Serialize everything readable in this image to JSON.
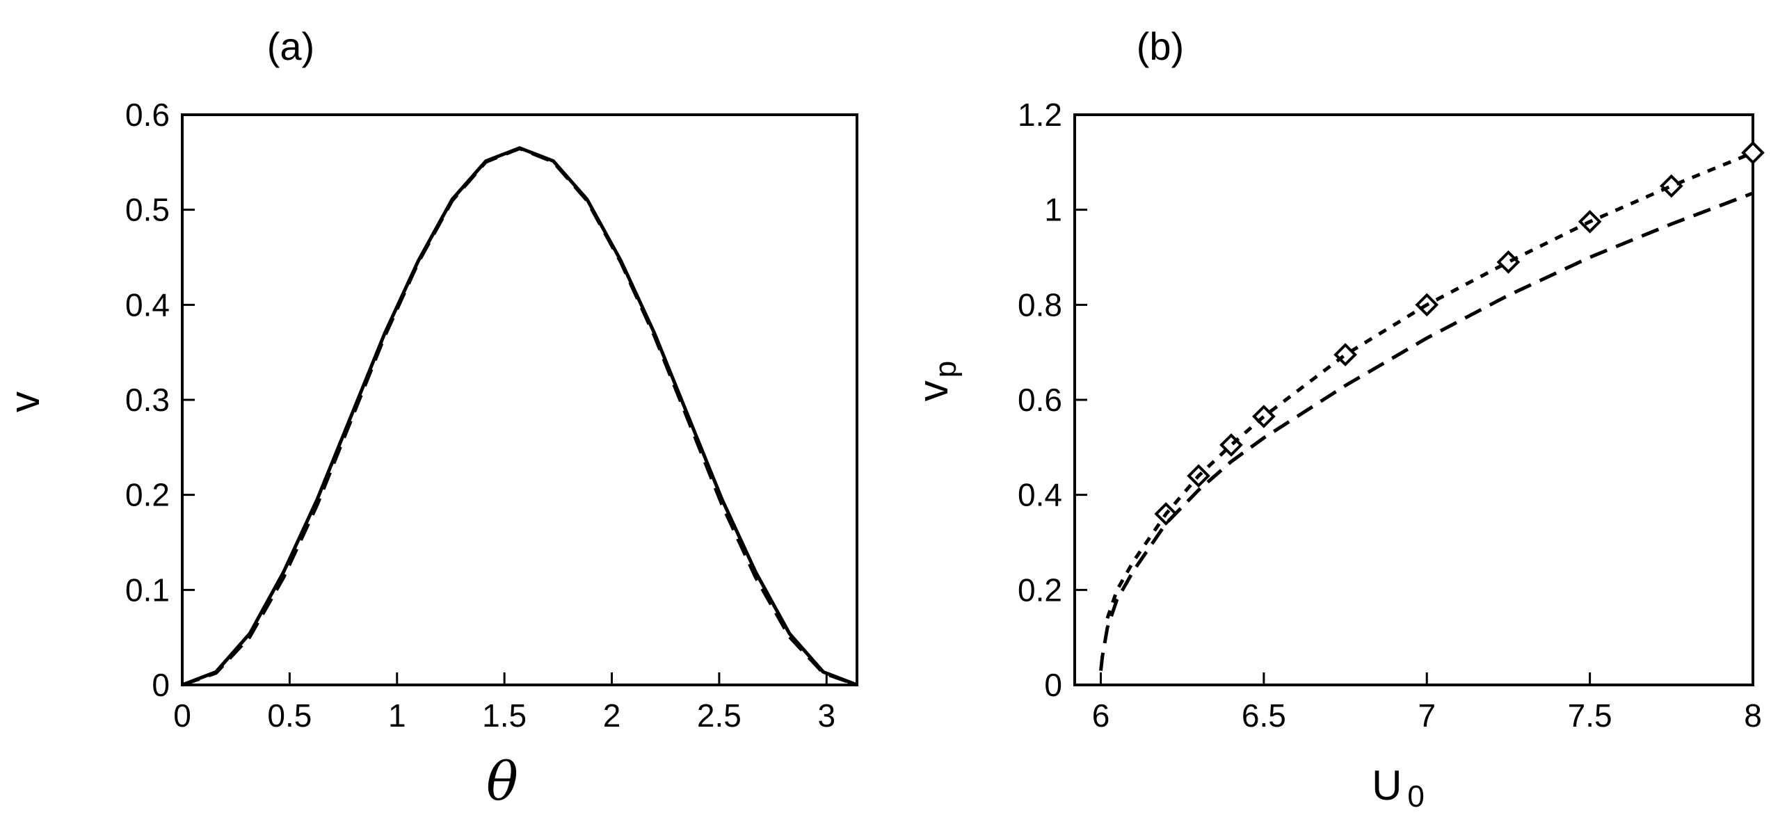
{
  "chart_data": [
    {
      "type": "line",
      "panel_label": "(a)",
      "title": "",
      "xlabel": "θ",
      "ylabel": "v",
      "xlim": [
        0,
        3.1416
      ],
      "ylim": [
        0,
        0.6
      ],
      "xticks": [
        0,
        0.5,
        1,
        1.5,
        2,
        2.5,
        3
      ],
      "xtick_labels": [
        "0",
        "0.5",
        "1",
        "1.5",
        "2",
        "2.5",
        "3"
      ],
      "yticks": [
        0,
        0.1,
        0.2,
        0.3,
        0.4,
        0.5,
        0.6
      ],
      "ytick_labels": [
        "0",
        "0.1",
        "0.2",
        "0.3",
        "0.4",
        "0.5",
        "0.6"
      ],
      "grid": false,
      "series": [
        {
          "style": "solid",
          "x": [
            0,
            0.1571,
            0.3142,
            0.4712,
            0.6283,
            0.7854,
            0.9425,
            1.0996,
            1.2566,
            1.4137,
            1.5708,
            1.7279,
            1.885,
            2.042,
            2.1991,
            2.3562,
            2.5133,
            2.6704,
            2.8274,
            2.9845,
            3.1416
          ],
          "y": [
            0,
            0.0137,
            0.054,
            0.1185,
            0.1952,
            0.2825,
            0.3698,
            0.4465,
            0.5109,
            0.5513,
            0.565,
            0.5513,
            0.5109,
            0.4465,
            0.3698,
            0.2825,
            0.1952,
            0.1185,
            0.054,
            0.0137,
            0
          ]
        },
        {
          "style": "dashed",
          "x": [
            0,
            0.1571,
            0.3142,
            0.4712,
            0.6283,
            0.7854,
            0.9425,
            1.0996,
            1.2566,
            1.4137,
            1.5708,
            1.7279,
            1.885,
            2.042,
            2.1991,
            2.3562,
            2.5133,
            2.6704,
            2.8274,
            2.9845,
            3.1416
          ],
          "y": [
            0,
            0.0125,
            0.0505,
            0.1128,
            0.1895,
            0.2782,
            0.3668,
            0.4448,
            0.5095,
            0.5503,
            0.5645,
            0.5503,
            0.5095,
            0.4448,
            0.3668,
            0.2782,
            0.1895,
            0.1128,
            0.0505,
            0.0125,
            0
          ]
        }
      ]
    },
    {
      "type": "line",
      "panel_label": "(b)",
      "title": "",
      "xlabel": "U",
      "xlabel_sub": "0",
      "ylabel": "v",
      "ylabel_sub": "p",
      "xlim": [
        5.92,
        8
      ],
      "ylim": [
        0,
        1.2
      ],
      "xticks": [
        6,
        6.5,
        7,
        7.5,
        8
      ],
      "xtick_labels": [
        "6",
        "6.5",
        "7",
        "7.5",
        "8"
      ],
      "yticks": [
        0,
        0.2,
        0.4,
        0.6,
        0.8,
        1,
        1.2
      ],
      "ytick_labels": [
        "0",
        "0.2",
        "0.4",
        "0.6",
        "0.8",
        "1",
        "1.2"
      ],
      "grid": false,
      "series": [
        {
          "style": "markers-diamond",
          "x": [
            6.2,
            6.3,
            6.4,
            6.5,
            6.75,
            7,
            7.25,
            7.5,
            7.75,
            8
          ],
          "y": [
            0.36,
            0.44,
            0.505,
            0.565,
            0.695,
            0.8,
            0.89,
            0.975,
            1.05,
            1.12
          ]
        },
        {
          "style": "dotted",
          "x": [
            6.02,
            6.05,
            6.1,
            6.2,
            6.3,
            6.4,
            6.5,
            6.75,
            7,
            7.25,
            7.5,
            7.75,
            8
          ],
          "y": [
            0.14,
            0.2,
            0.26,
            0.36,
            0.44,
            0.505,
            0.565,
            0.695,
            0.8,
            0.89,
            0.975,
            1.05,
            1.12
          ]
        },
        {
          "style": "dashed",
          "x": [
            6,
            6.005,
            6.02,
            6.05,
            6.1,
            6.2,
            6.3,
            6.4,
            6.5,
            6.75,
            7,
            7.25,
            7.5,
            7.75,
            8
          ],
          "y": [
            0.03,
            0.06,
            0.12,
            0.18,
            0.24,
            0.34,
            0.41,
            0.47,
            0.52,
            0.63,
            0.73,
            0.82,
            0.9,
            0.97,
            1.035
          ]
        }
      ]
    }
  ]
}
